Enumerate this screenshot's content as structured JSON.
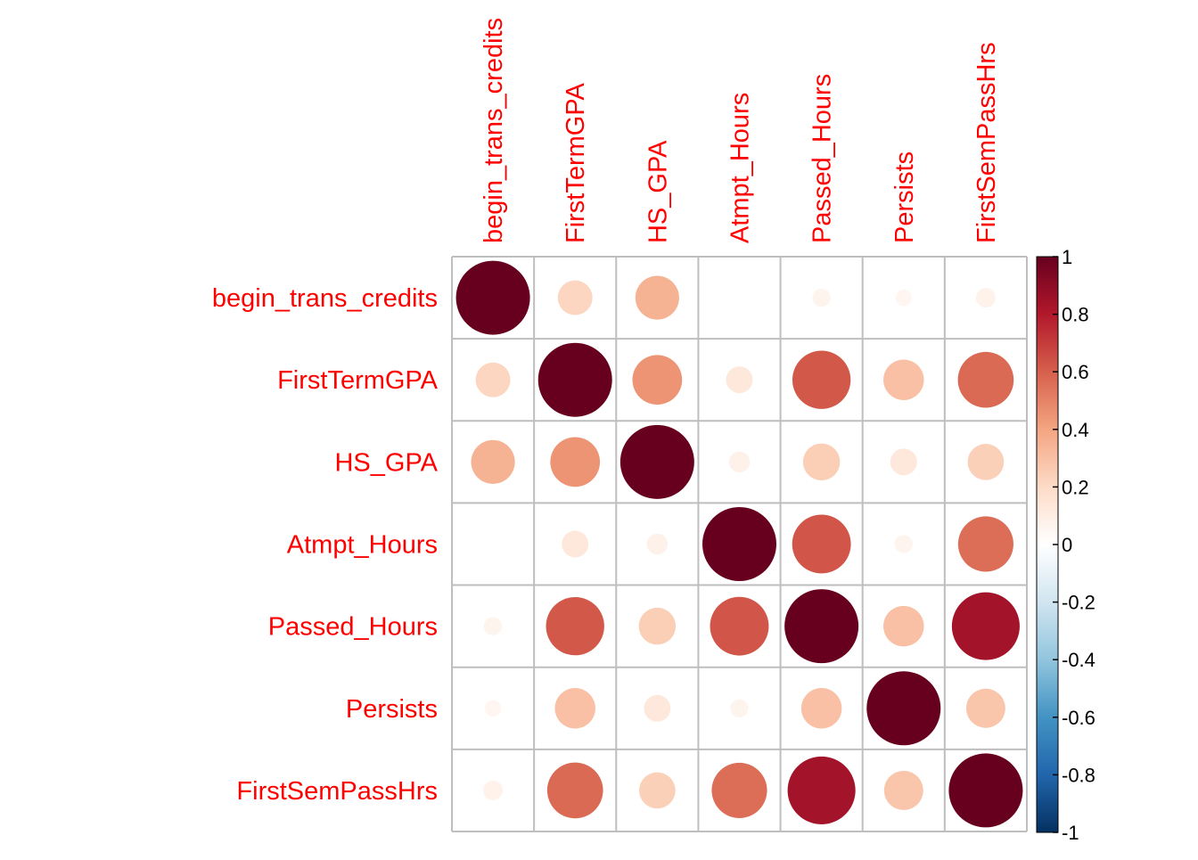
{
  "chart_data": {
    "type": "heatmap",
    "subtype": "correlation-circle",
    "variables": [
      "begin_trans_credits",
      "FirstTermGPA",
      "HS_GPA",
      "Atmpt_Hours",
      "Passed_Hours",
      "Persists",
      "FirstSemPassHrs"
    ],
    "matrix": [
      [
        1.0,
        0.22,
        0.35,
        0.0,
        0.06,
        0.05,
        0.07
      ],
      [
        0.22,
        1.0,
        0.45,
        0.13,
        0.62,
        0.3,
        0.57
      ],
      [
        0.35,
        0.45,
        1.0,
        0.08,
        0.25,
        0.13,
        0.24
      ],
      [
        0.0,
        0.13,
        0.08,
        1.0,
        0.63,
        0.06,
        0.56
      ],
      [
        0.06,
        0.62,
        0.25,
        0.63,
        1.0,
        0.3,
        0.84
      ],
      [
        0.05,
        0.3,
        0.13,
        0.06,
        0.3,
        1.0,
        0.28
      ],
      [
        0.07,
        0.57,
        0.24,
        0.56,
        0.84,
        0.28,
        1.0
      ]
    ],
    "colorbar": {
      "range": [
        -1,
        1
      ],
      "tick_labels": [
        "1",
        "0.8",
        "0.6",
        "0.4",
        "0.2",
        "0",
        "-0.2",
        "-0.4",
        "-0.6",
        "-0.8",
        "-1"
      ],
      "tick_values": [
        1,
        0.8,
        0.6,
        0.4,
        0.2,
        0,
        -0.2,
        -0.4,
        -0.6,
        -0.8,
        -1
      ],
      "colors": [
        "#67001F",
        "#B2182B",
        "#D6604D",
        "#F4A582",
        "#FDDBC7",
        "#FFFFFF",
        "#D1E5F0",
        "#92C5DE",
        "#4393C3",
        "#2166AC",
        "#053061"
      ]
    },
    "label_color": "#FF0000",
    "grid_color": "#BEBEBE",
    "title": "",
    "xlabel": "",
    "ylabel": ""
  }
}
